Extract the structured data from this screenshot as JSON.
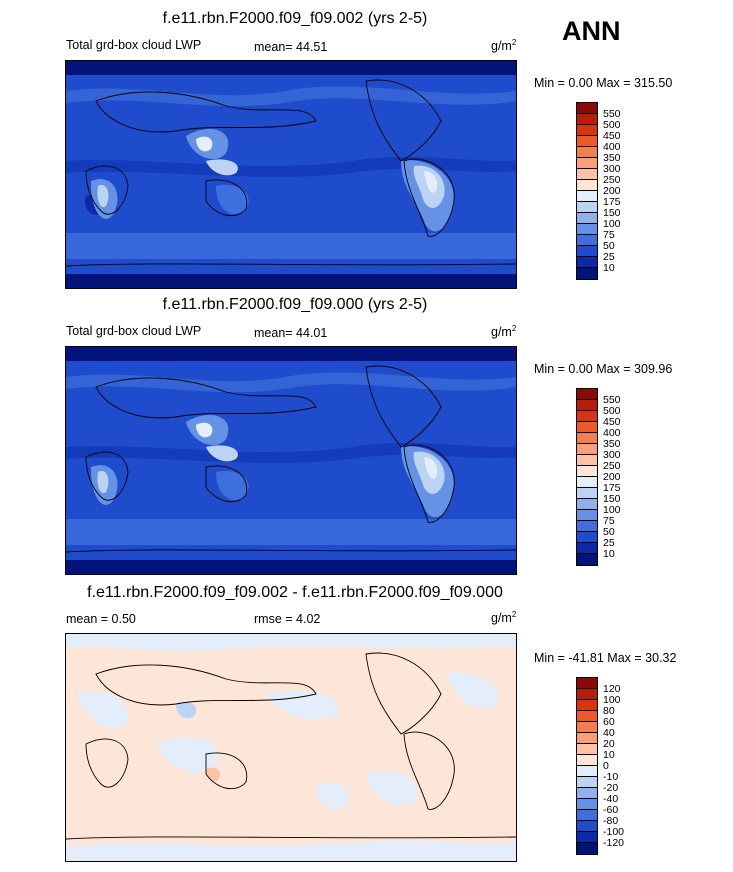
{
  "season": "ANN",
  "panels": [
    {
      "title": "f.e11.rbn.F2000.f09_f09.002 (yrs 2-5)",
      "left_label": "Total grd-box cloud LWP",
      "center_label": "mean=  44.51",
      "units": "g/m",
      "units_exp": "2",
      "minmax": "Min =   0.00 Max = 315.50",
      "levels": [
        "550",
        "500",
        "450",
        "400",
        "350",
        "300",
        "250",
        "200",
        "175",
        "150",
        "100",
        "75",
        "50",
        "25",
        "10"
      ],
      "colors": [
        "#8b0a07",
        "#b81d0c",
        "#d83410",
        "#ee5b2a",
        "#f57e4f",
        "#fa9f78",
        "#fbc3a4",
        "#fde6d8",
        "#e4eefa",
        "#bcd3f3",
        "#8fb2ec",
        "#6592e5",
        "#3e6fdc",
        "#1f4ccd",
        "#0a2aa7",
        "#04137a"
      ]
    },
    {
      "title": "f.e11.rbn.F2000.f09_f09.000 (yrs 2-5)",
      "left_label": "Total grd-box cloud LWP",
      "center_label": "mean=  44.01",
      "units": "g/m",
      "units_exp": "2",
      "minmax": "Min =   0.00 Max = 309.96",
      "levels": [
        "550",
        "500",
        "450",
        "400",
        "350",
        "300",
        "250",
        "200",
        "175",
        "150",
        "100",
        "75",
        "50",
        "25",
        "10"
      ],
      "colors": [
        "#8b0a07",
        "#b81d0c",
        "#d83410",
        "#ee5b2a",
        "#f57e4f",
        "#fa9f78",
        "#fbc3a4",
        "#fde6d8",
        "#e4eefa",
        "#bcd3f3",
        "#8fb2ec",
        "#6592e5",
        "#3e6fdc",
        "#1f4ccd",
        "#0a2aa7",
        "#04137a"
      ]
    },
    {
      "title": "f.e11.rbn.F2000.f09_f09.002 - f.e11.rbn.F2000.f09_f09.000",
      "left_label": "mean =   0.50",
      "center_label": "rmse =   4.02",
      "units": "g/m",
      "units_exp": "2",
      "minmax": "Min = -41.81 Max =  30.32",
      "levels": [
        "120",
        "100",
        "80",
        "60",
        "40",
        "20",
        "10",
        "0",
        "-10",
        "-20",
        "-40",
        "-60",
        "-80",
        "-100",
        "-120"
      ],
      "colors": [
        "#8b0a07",
        "#b81d0c",
        "#d83410",
        "#ee5b2a",
        "#f57e4f",
        "#fa9f78",
        "#fbc3a4",
        "#fde6d8",
        "#e4eefa",
        "#bcd3f3",
        "#8fb2ec",
        "#6592e5",
        "#3e6fdc",
        "#1f4ccd",
        "#0a2aa7",
        "#04137a"
      ]
    }
  ]
}
